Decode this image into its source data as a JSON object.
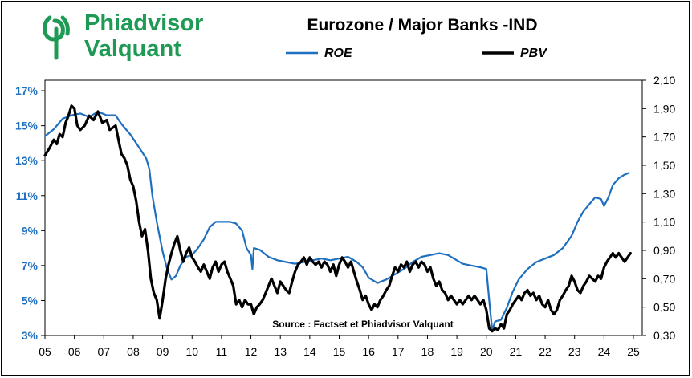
{
  "header": {
    "logo": {
      "line1": "Phiadvisor",
      "line2": "Valquant",
      "color": "#1f9a55"
    },
    "title": "Eurozone / Major Banks -IND"
  },
  "chart_data": {
    "type": "line",
    "title": "Eurozone / Major Banks -IND",
    "source": "Source : Factset et Phiadvisor Valquant",
    "x_axis": {
      "range": [
        2005,
        2025.3
      ],
      "tick_labels": [
        "05",
        "06",
        "07",
        "08",
        "09",
        "10",
        "11",
        "12",
        "13",
        "14",
        "15",
        "16",
        "17",
        "18",
        "19",
        "20",
        "21",
        "22",
        "23",
        "24",
        "25"
      ]
    },
    "y_left": {
      "range": [
        3,
        17.6
      ],
      "tick_values": [
        3,
        5,
        7,
        9,
        11,
        13,
        15,
        17
      ],
      "tick_labels": [
        "3%",
        "5%",
        "7%",
        "9%",
        "11%",
        "13%",
        "15%",
        "17%"
      ],
      "color": "#1f6fbf"
    },
    "y_right": {
      "range": [
        0.3,
        2.1
      ],
      "tick_values": [
        0.3,
        0.5,
        0.7,
        0.9,
        1.1,
        1.3,
        1.5,
        1.7,
        1.9,
        2.1
      ],
      "tick_labels": [
        "0,30",
        "0,50",
        "0,70",
        "0,90",
        "1,10",
        "1,30",
        "1,50",
        "1,70",
        "1,90",
        "2,10"
      ]
    },
    "legend": {
      "placement": "top-right"
    },
    "series": [
      {
        "name": "ROE",
        "axis": "left",
        "color": "#1f6fbf",
        "points": [
          [
            2005,
            14.4
          ],
          [
            2005.3,
            14.8
          ],
          [
            2005.6,
            15.4
          ],
          [
            2005.9,
            15.6
          ],
          [
            2006.2,
            15.7
          ],
          [
            2006.5,
            15.5
          ],
          [
            2006.8,
            15.8
          ],
          [
            2007.1,
            15.6
          ],
          [
            2007.4,
            15.6
          ],
          [
            2007.6,
            15.1
          ],
          [
            2007.9,
            14.5
          ],
          [
            2008.1,
            14.0
          ],
          [
            2008.3,
            13.5
          ],
          [
            2008.45,
            13.1
          ],
          [
            2008.55,
            12.5
          ],
          [
            2008.65,
            11.0
          ],
          [
            2008.8,
            9.5
          ],
          [
            2009.0,
            7.8
          ],
          [
            2009.15,
            6.8
          ],
          [
            2009.3,
            6.2
          ],
          [
            2009.45,
            6.4
          ],
          [
            2009.6,
            7.0
          ],
          [
            2009.8,
            7.5
          ],
          [
            2010.0,
            7.6
          ],
          [
            2010.2,
            8.0
          ],
          [
            2010.4,
            8.5
          ],
          [
            2010.6,
            9.2
          ],
          [
            2010.8,
            9.5
          ],
          [
            2011.0,
            9.5
          ],
          [
            2011.3,
            9.5
          ],
          [
            2011.5,
            9.4
          ],
          [
            2011.7,
            9.0
          ],
          [
            2011.85,
            8.0
          ],
          [
            2012.0,
            7.6
          ],
          [
            2012.05,
            6.8
          ],
          [
            2012.1,
            8.0
          ],
          [
            2012.3,
            7.9
          ],
          [
            2012.6,
            7.5
          ],
          [
            2012.9,
            7.3
          ],
          [
            2013.2,
            7.2
          ],
          [
            2013.5,
            7.1
          ],
          [
            2013.8,
            7.2
          ],
          [
            2014.1,
            7.3
          ],
          [
            2014.4,
            7.4
          ],
          [
            2014.7,
            7.3
          ],
          [
            2015.0,
            7.4
          ],
          [
            2015.3,
            7.5
          ],
          [
            2015.6,
            7.2
          ],
          [
            2015.8,
            6.9
          ],
          [
            2016.0,
            6.3
          ],
          [
            2016.3,
            6.0
          ],
          [
            2016.6,
            6.2
          ],
          [
            2016.9,
            6.5
          ],
          [
            2017.2,
            6.8
          ],
          [
            2017.5,
            7.2
          ],
          [
            2017.8,
            7.5
          ],
          [
            2018.1,
            7.6
          ],
          [
            2018.4,
            7.7
          ],
          [
            2018.7,
            7.6
          ],
          [
            2018.9,
            7.4
          ],
          [
            2019.2,
            7.1
          ],
          [
            2019.5,
            7.0
          ],
          [
            2019.8,
            6.9
          ],
          [
            2020.0,
            6.8
          ],
          [
            2020.1,
            5.0
          ],
          [
            2020.2,
            3.3
          ],
          [
            2020.3,
            3.8
          ],
          [
            2020.5,
            3.9
          ],
          [
            2020.7,
            4.6
          ],
          [
            2020.9,
            5.5
          ],
          [
            2021.1,
            6.2
          ],
          [
            2021.4,
            6.8
          ],
          [
            2021.7,
            7.2
          ],
          [
            2022.0,
            7.4
          ],
          [
            2022.3,
            7.6
          ],
          [
            2022.6,
            8.0
          ],
          [
            2022.9,
            8.7
          ],
          [
            2023.1,
            9.5
          ],
          [
            2023.3,
            10.1
          ],
          [
            2023.5,
            10.5
          ],
          [
            2023.7,
            10.9
          ],
          [
            2023.9,
            10.8
          ],
          [
            2024.0,
            10.4
          ],
          [
            2024.15,
            10.9
          ],
          [
            2024.3,
            11.6
          ],
          [
            2024.5,
            12.0
          ],
          [
            2024.7,
            12.2
          ],
          [
            2024.85,
            12.3
          ]
        ]
      },
      {
        "name": "PBV",
        "axis": "right",
        "color": "#000000",
        "points": [
          [
            2005,
            1.57
          ],
          [
            2005.15,
            1.62
          ],
          [
            2005.3,
            1.68
          ],
          [
            2005.4,
            1.65
          ],
          [
            2005.5,
            1.72
          ],
          [
            2005.6,
            1.7
          ],
          [
            2005.7,
            1.8
          ],
          [
            2005.8,
            1.85
          ],
          [
            2005.9,
            1.92
          ],
          [
            2006.0,
            1.9
          ],
          [
            2006.1,
            1.78
          ],
          [
            2006.2,
            1.75
          ],
          [
            2006.35,
            1.78
          ],
          [
            2006.5,
            1.85
          ],
          [
            2006.65,
            1.82
          ],
          [
            2006.8,
            1.88
          ],
          [
            2006.95,
            1.8
          ],
          [
            2007.1,
            1.82
          ],
          [
            2007.2,
            1.75
          ],
          [
            2007.4,
            1.78
          ],
          [
            2007.5,
            1.68
          ],
          [
            2007.6,
            1.58
          ],
          [
            2007.7,
            1.55
          ],
          [
            2007.8,
            1.5
          ],
          [
            2007.9,
            1.4
          ],
          [
            2008.0,
            1.35
          ],
          [
            2008.1,
            1.25
          ],
          [
            2008.2,
            1.1
          ],
          [
            2008.3,
            1.0
          ],
          [
            2008.4,
            1.05
          ],
          [
            2008.5,
            0.9
          ],
          [
            2008.6,
            0.7
          ],
          [
            2008.7,
            0.6
          ],
          [
            2008.8,
            0.55
          ],
          [
            2008.9,
            0.42
          ],
          [
            2009.0,
            0.55
          ],
          [
            2009.1,
            0.7
          ],
          [
            2009.2,
            0.8
          ],
          [
            2009.3,
            0.88
          ],
          [
            2009.4,
            0.95
          ],
          [
            2009.5,
            1.0
          ],
          [
            2009.6,
            0.9
          ],
          [
            2009.7,
            0.82
          ],
          [
            2009.8,
            0.88
          ],
          [
            2009.9,
            0.92
          ],
          [
            2010.0,
            0.85
          ],
          [
            2010.1,
            0.82
          ],
          [
            2010.2,
            0.78
          ],
          [
            2010.3,
            0.75
          ],
          [
            2010.4,
            0.8
          ],
          [
            2010.5,
            0.75
          ],
          [
            2010.6,
            0.7
          ],
          [
            2010.7,
            0.78
          ],
          [
            2010.8,
            0.82
          ],
          [
            2010.9,
            0.75
          ],
          [
            2011.0,
            0.8
          ],
          [
            2011.1,
            0.82
          ],
          [
            2011.2,
            0.75
          ],
          [
            2011.3,
            0.7
          ],
          [
            2011.4,
            0.65
          ],
          [
            2011.5,
            0.52
          ],
          [
            2011.6,
            0.55
          ],
          [
            2011.7,
            0.5
          ],
          [
            2011.8,
            0.55
          ],
          [
            2011.9,
            0.52
          ],
          [
            2012.0,
            0.52
          ],
          [
            2012.1,
            0.45
          ],
          [
            2012.2,
            0.5
          ],
          [
            2012.3,
            0.52
          ],
          [
            2012.4,
            0.55
          ],
          [
            2012.5,
            0.6
          ],
          [
            2012.6,
            0.65
          ],
          [
            2012.7,
            0.7
          ],
          [
            2012.8,
            0.65
          ],
          [
            2012.9,
            0.6
          ],
          [
            2013.0,
            0.68
          ],
          [
            2013.1,
            0.65
          ],
          [
            2013.2,
            0.62
          ],
          [
            2013.3,
            0.6
          ],
          [
            2013.4,
            0.68
          ],
          [
            2013.5,
            0.75
          ],
          [
            2013.6,
            0.8
          ],
          [
            2013.7,
            0.82
          ],
          [
            2013.8,
            0.85
          ],
          [
            2013.9,
            0.8
          ],
          [
            2014.0,
            0.85
          ],
          [
            2014.1,
            0.82
          ],
          [
            2014.2,
            0.8
          ],
          [
            2014.3,
            0.82
          ],
          [
            2014.4,
            0.78
          ],
          [
            2014.5,
            0.82
          ],
          [
            2014.6,
            0.8
          ],
          [
            2014.7,
            0.75
          ],
          [
            2014.8,
            0.8
          ],
          [
            2014.9,
            0.72
          ],
          [
            2015.0,
            0.8
          ],
          [
            2015.1,
            0.85
          ],
          [
            2015.2,
            0.82
          ],
          [
            2015.3,
            0.78
          ],
          [
            2015.4,
            0.82
          ],
          [
            2015.5,
            0.75
          ],
          [
            2015.6,
            0.68
          ],
          [
            2015.7,
            0.62
          ],
          [
            2015.8,
            0.55
          ],
          [
            2015.9,
            0.58
          ],
          [
            2016.0,
            0.52
          ],
          [
            2016.1,
            0.48
          ],
          [
            2016.2,
            0.52
          ],
          [
            2016.3,
            0.5
          ],
          [
            2016.4,
            0.55
          ],
          [
            2016.5,
            0.58
          ],
          [
            2016.6,
            0.62
          ],
          [
            2016.7,
            0.65
          ],
          [
            2016.8,
            0.72
          ],
          [
            2016.9,
            0.78
          ],
          [
            2017.0,
            0.75
          ],
          [
            2017.1,
            0.8
          ],
          [
            2017.2,
            0.78
          ],
          [
            2017.3,
            0.82
          ],
          [
            2017.4,
            0.75
          ],
          [
            2017.5,
            0.8
          ],
          [
            2017.6,
            0.82
          ],
          [
            2017.7,
            0.78
          ],
          [
            2017.8,
            0.82
          ],
          [
            2017.9,
            0.8
          ],
          [
            2018.0,
            0.75
          ],
          [
            2018.1,
            0.78
          ],
          [
            2018.2,
            0.7
          ],
          [
            2018.3,
            0.65
          ],
          [
            2018.4,
            0.68
          ],
          [
            2018.5,
            0.62
          ],
          [
            2018.6,
            0.6
          ],
          [
            2018.7,
            0.55
          ],
          [
            2018.8,
            0.58
          ],
          [
            2018.9,
            0.55
          ],
          [
            2019.0,
            0.52
          ],
          [
            2019.1,
            0.55
          ],
          [
            2019.2,
            0.52
          ],
          [
            2019.3,
            0.55
          ],
          [
            2019.4,
            0.58
          ],
          [
            2019.5,
            0.55
          ],
          [
            2019.6,
            0.58
          ],
          [
            2019.7,
            0.55
          ],
          [
            2019.8,
            0.52
          ],
          [
            2019.9,
            0.55
          ],
          [
            2020.0,
            0.48
          ],
          [
            2020.1,
            0.35
          ],
          [
            2020.2,
            0.33
          ],
          [
            2020.3,
            0.35
          ],
          [
            2020.4,
            0.34
          ],
          [
            2020.5,
            0.38
          ],
          [
            2020.6,
            0.35
          ],
          [
            2020.7,
            0.45
          ],
          [
            2020.8,
            0.48
          ],
          [
            2020.9,
            0.52
          ],
          [
            2021.0,
            0.55
          ],
          [
            2021.1,
            0.58
          ],
          [
            2021.2,
            0.55
          ],
          [
            2021.3,
            0.6
          ],
          [
            2021.4,
            0.62
          ],
          [
            2021.5,
            0.58
          ],
          [
            2021.6,
            0.6
          ],
          [
            2021.7,
            0.55
          ],
          [
            2021.8,
            0.58
          ],
          [
            2021.9,
            0.52
          ],
          [
            2022.0,
            0.5
          ],
          [
            2022.1,
            0.55
          ],
          [
            2022.2,
            0.48
          ],
          [
            2022.3,
            0.45
          ],
          [
            2022.4,
            0.48
          ],
          [
            2022.5,
            0.55
          ],
          [
            2022.6,
            0.58
          ],
          [
            2022.7,
            0.62
          ],
          [
            2022.8,
            0.65
          ],
          [
            2022.9,
            0.72
          ],
          [
            2023.0,
            0.68
          ],
          [
            2023.1,
            0.62
          ],
          [
            2023.2,
            0.6
          ],
          [
            2023.3,
            0.65
          ],
          [
            2023.4,
            0.68
          ],
          [
            2023.5,
            0.72
          ],
          [
            2023.6,
            0.7
          ],
          [
            2023.7,
            0.68
          ],
          [
            2023.8,
            0.72
          ],
          [
            2023.9,
            0.7
          ],
          [
            2024.0,
            0.78
          ],
          [
            2024.1,
            0.82
          ],
          [
            2024.2,
            0.85
          ],
          [
            2024.3,
            0.88
          ],
          [
            2024.4,
            0.85
          ],
          [
            2024.5,
            0.88
          ],
          [
            2024.6,
            0.85
          ],
          [
            2024.7,
            0.82
          ],
          [
            2024.8,
            0.85
          ],
          [
            2024.9,
            0.88
          ]
        ]
      }
    ]
  }
}
